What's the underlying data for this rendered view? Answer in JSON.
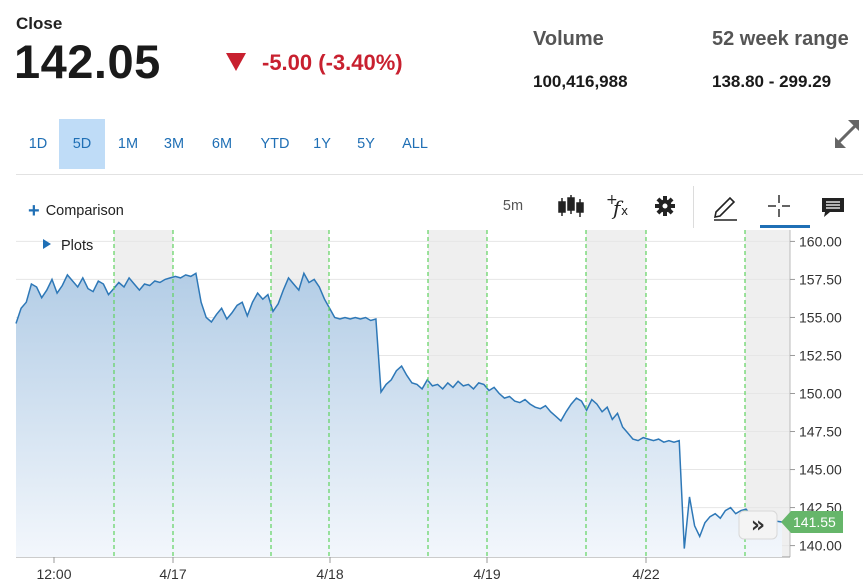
{
  "quote": {
    "close_label": "Close",
    "price": "142.05",
    "change": "-5.00 (-3.40%)",
    "change_color": "#c8202f",
    "volume_label": "Volume",
    "volume_value": "100,416,988",
    "range_label": "52 week range",
    "range_value": "138.80 - 299.29"
  },
  "range_buttons": [
    "1D",
    "5D",
    "1M",
    "3M",
    "6M",
    "YTD",
    "1Y",
    "5Y",
    "ALL"
  ],
  "active_range": "5D",
  "toolbar": {
    "comparison_label": "Comparison",
    "interval_label": "5m",
    "icons": [
      "candlestick-icon",
      "function-icon",
      "gear-icon",
      "pencil-icon",
      "crosshair-icon",
      "comment-icon"
    ]
  },
  "plots_label": "Plots",
  "chart_data": {
    "type": "area",
    "colors": {
      "line": "#2e78b7",
      "fill_top": "#b3cde6",
      "fill_bottom": "#f3f7fc",
      "label": "#66b66a",
      "session_line": "#5fd35f",
      "shade": "#efefef"
    },
    "ylim": [
      139.25,
      160.75
    ],
    "y_ticks": [
      "160.00",
      "157.50",
      "155.00",
      "152.50",
      "150.00",
      "147.50",
      "145.00",
      "142.50",
      "140.00"
    ],
    "x_labels": [
      "12:00",
      "4/17",
      "4/18",
      "4/19",
      "4/22"
    ],
    "last_value": "141.55",
    "grid": true,
    "series": [
      {
        "values": [
          154.6,
          155.6,
          156.0,
          157.2,
          157.0,
          156.3,
          156.8,
          157.5,
          156.6,
          157.1,
          157.8,
          157.4,
          157.0,
          157.6,
          156.9,
          156.7,
          157.4,
          157.2,
          156.5,
          156.9,
          157.3,
          157.0,
          157.6,
          157.2,
          156.8,
          157.2,
          157.1,
          157.4,
          157.3,
          157.5,
          157.6,
          157.7,
          157.6,
          157.8,
          157.7,
          157.9,
          156.0,
          155.0,
          154.7,
          155.2,
          155.6,
          154.9,
          155.3,
          155.8,
          156.0,
          155.1,
          156.0,
          156.6,
          156.2,
          156.5,
          155.4,
          155.9,
          156.8,
          157.6,
          157.2,
          156.8,
          157.9,
          157.3,
          157.5,
          157.0,
          156.2,
          155.6,
          155.0,
          154.9,
          155.0,
          154.9,
          155.0,
          154.9,
          155.0,
          154.8,
          154.9,
          150.1,
          150.6,
          150.9,
          151.5,
          151.8,
          151.2,
          150.7,
          150.6,
          150.3,
          150.9,
          150.5,
          150.6,
          150.3,
          150.7,
          150.4,
          150.8,
          150.5,
          150.6,
          150.3,
          150.7,
          150.6,
          150.2,
          150.4,
          150.0,
          149.7,
          149.8,
          149.5,
          149.4,
          149.6,
          149.3,
          149.1,
          149.0,
          149.2,
          148.8,
          148.5,
          148.2,
          148.8,
          149.3,
          149.7,
          149.5,
          148.9,
          149.6,
          149.3,
          148.8,
          149.1,
          148.3,
          148.7,
          147.8,
          147.4,
          147.0,
          146.9,
          147.1,
          147.0,
          146.9,
          147.0,
          146.8,
          146.9,
          146.8,
          146.9,
          139.8,
          143.2,
          141.3,
          140.6,
          141.5,
          141.9,
          142.1,
          141.8,
          142.3,
          142.5,
          142.1,
          142.3,
          142.4,
          142.0,
          142.2,
          141.9,
          141.8,
          141.7,
          141.6,
          141.55
        ]
      }
    ]
  }
}
